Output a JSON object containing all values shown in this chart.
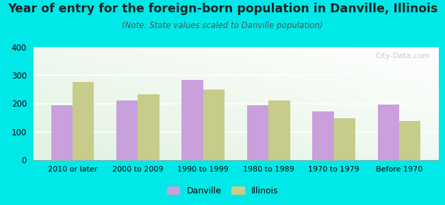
{
  "categories": [
    "2010 or later",
    "2000 to 2009",
    "1990 to 1999",
    "1980 to 1989",
    "1970 to 1979",
    "Before 1970"
  ],
  "danville_values": [
    193,
    210,
    283,
    193,
    172,
    197
  ],
  "illinois_values": [
    277,
    232,
    250,
    212,
    148,
    138
  ],
  "danville_color": "#c9a0dc",
  "illinois_color": "#c8cc8a",
  "title": "Year of entry for the foreign-born population in Danville, Illinois",
  "subtitle": "(Note: State values scaled to Danville population)",
  "ylim": [
    0,
    400
  ],
  "yticks": [
    0,
    100,
    200,
    300,
    400
  ],
  "background_color": "#00e8e8",
  "title_fontsize": 12.5,
  "subtitle_fontsize": 8.5,
  "watermark": "City-Data.com",
  "legend_danville": "Danville",
  "legend_illinois": "Illinois"
}
